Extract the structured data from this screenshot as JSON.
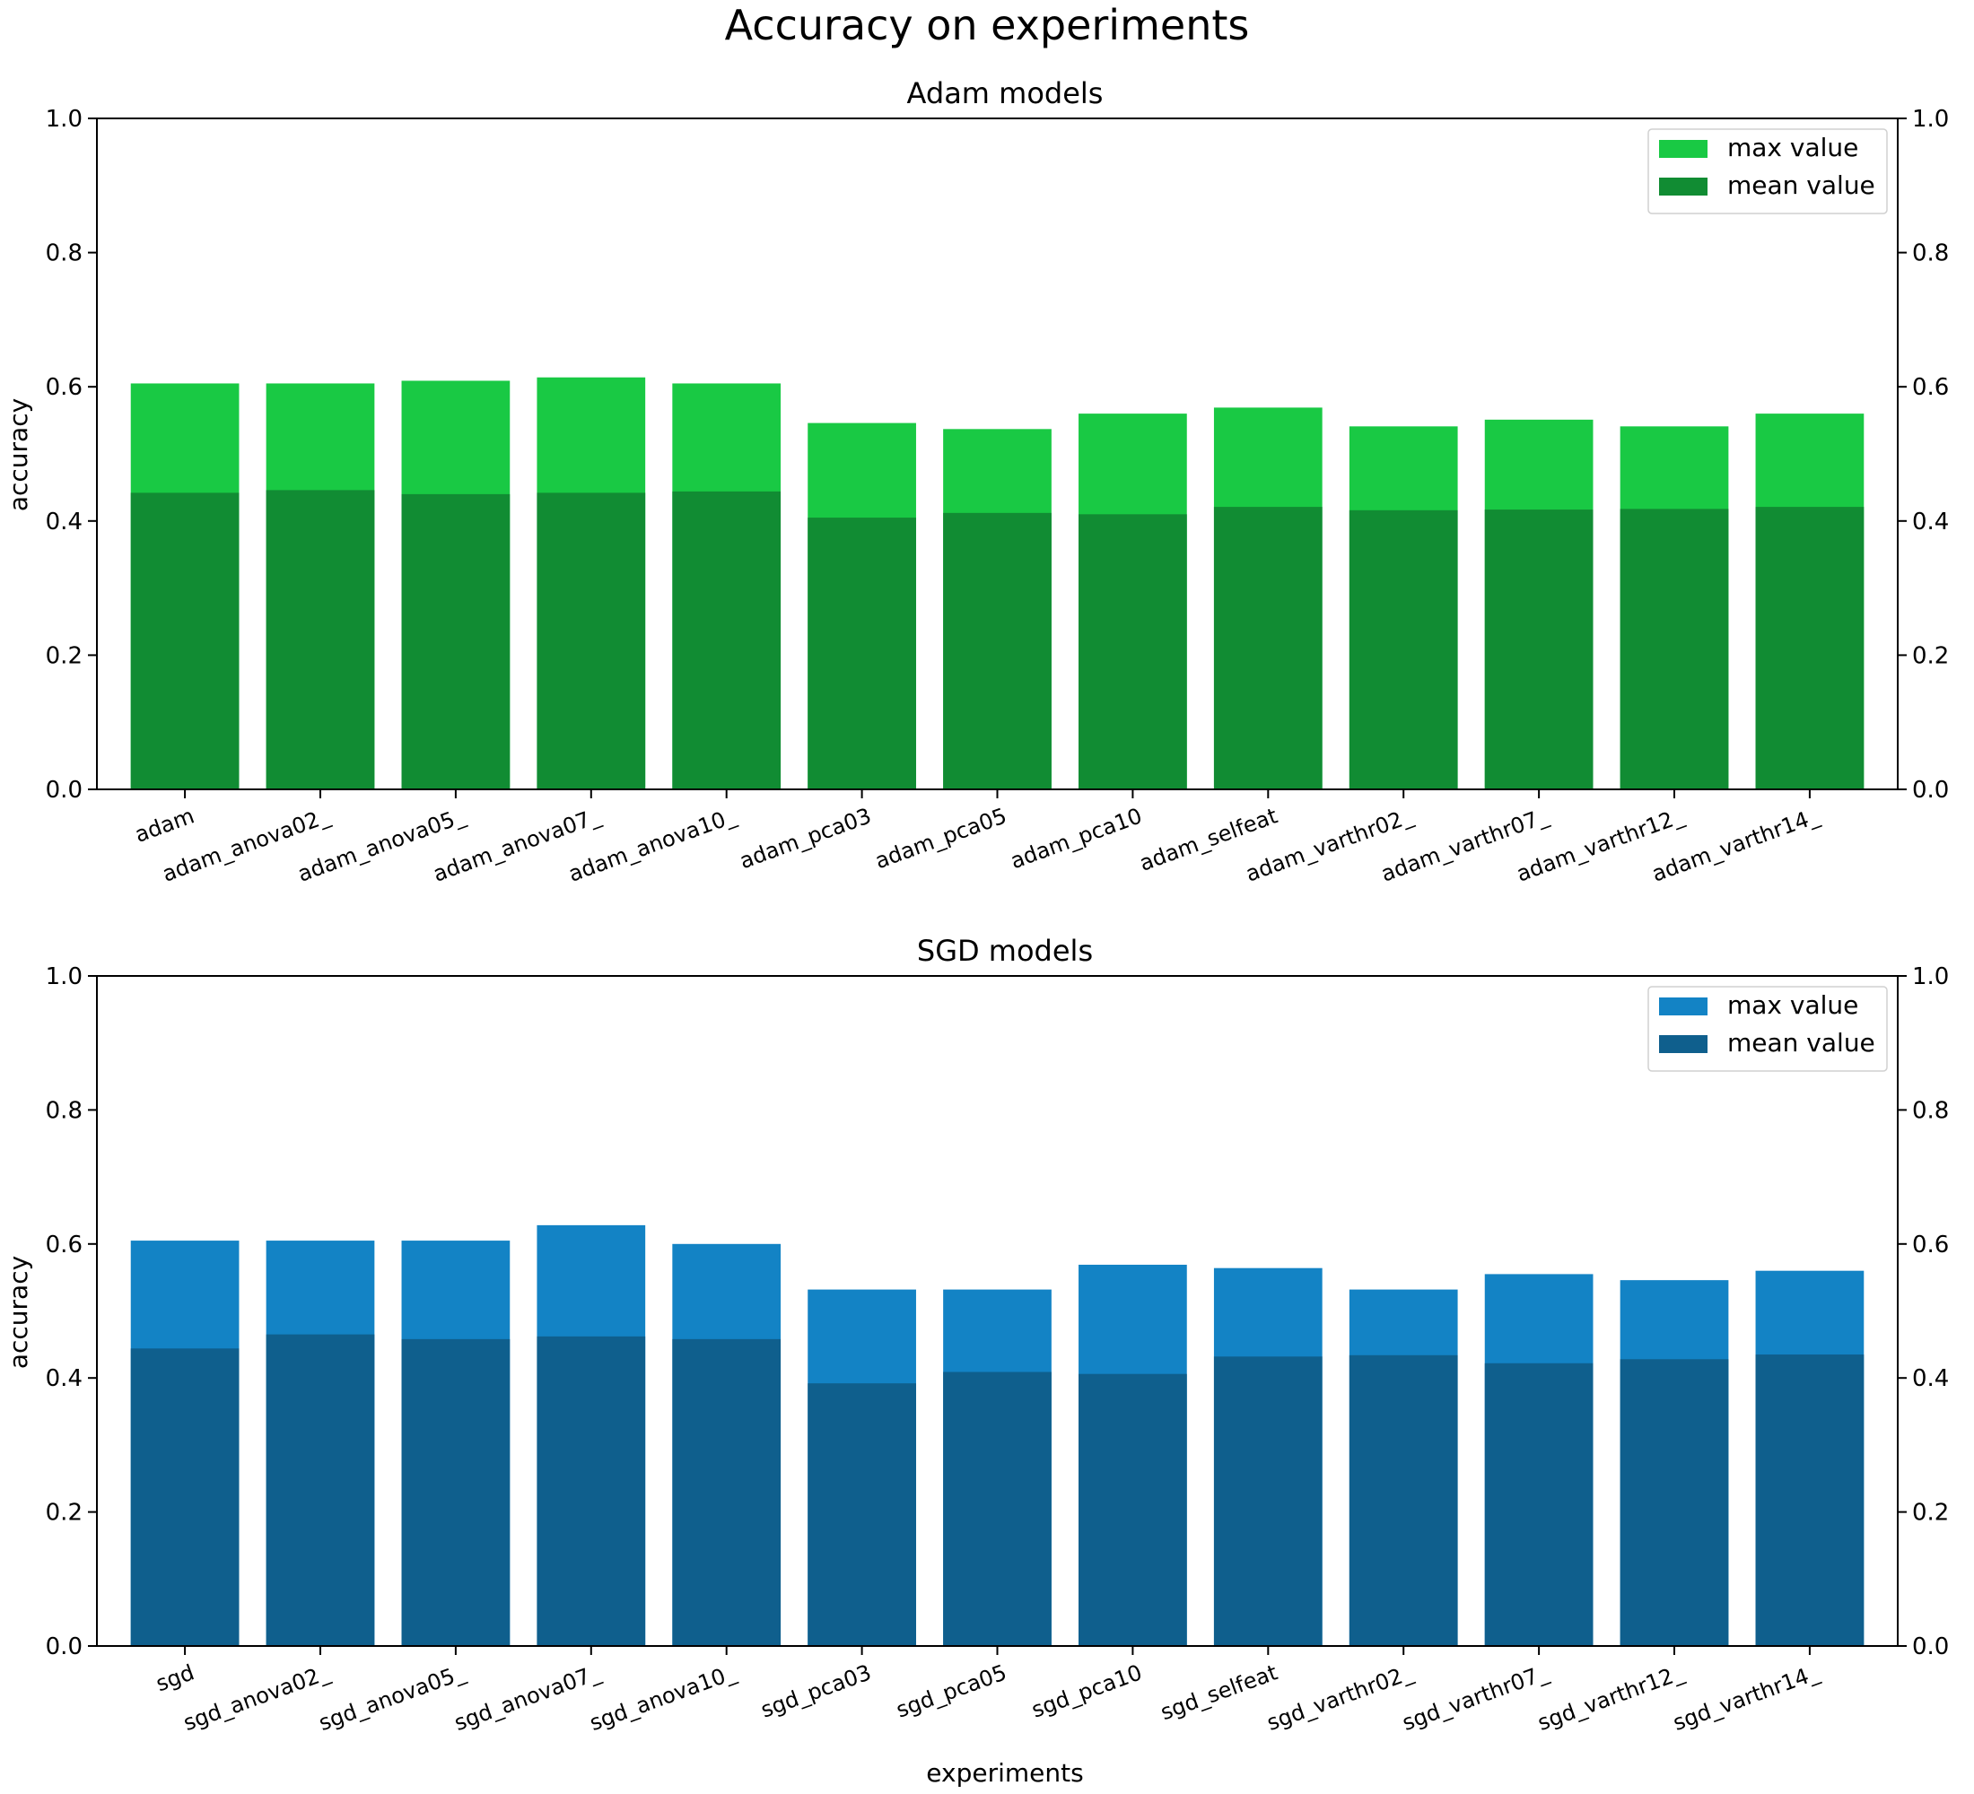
{
  "figure_title": "Accuracy on experiments",
  "chart_data": [
    {
      "type": "bar",
      "title": "Adam models",
      "xlabel": "",
      "ylabel": "accuracy",
      "ylim": [
        0,
        1.0
      ],
      "yticks": [
        "0.0",
        "0.2",
        "0.4",
        "0.6",
        "0.8",
        "1.0"
      ],
      "grid": false,
      "legend_position": "top-right",
      "categories": [
        "adam",
        "adam_anova02_",
        "adam_anova05_",
        "adam_anova07_",
        "adam_anova10_",
        "adam_pca03",
        "adam_pca05",
        "adam_pca10",
        "adam_selfeat",
        "adam_varthr02_",
        "adam_varthr07_",
        "adam_varthr12_",
        "adam_varthr14_"
      ],
      "series": [
        {
          "name": "max value",
          "color": "#19c944",
          "values": [
            0.605,
            0.605,
            0.609,
            0.614,
            0.605,
            0.546,
            0.537,
            0.56,
            0.569,
            0.541,
            0.551,
            0.541,
            0.56
          ]
        },
        {
          "name": "mean value",
          "color": "#118c33",
          "values": [
            0.442,
            0.446,
            0.44,
            0.442,
            0.444,
            0.405,
            0.412,
            0.41,
            0.421,
            0.416,
            0.417,
            0.418,
            0.421
          ]
        }
      ]
    },
    {
      "type": "bar",
      "title": "SGD models",
      "xlabel": "experiments",
      "ylabel": "accuracy",
      "ylim": [
        0,
        1.0
      ],
      "yticks": [
        "0.0",
        "0.2",
        "0.4",
        "0.6",
        "0.8",
        "1.0"
      ],
      "grid": false,
      "legend_position": "top-right",
      "categories": [
        "sgd",
        "sgd_anova02_",
        "sgd_anova05_",
        "sgd_anova07_",
        "sgd_anova10_",
        "sgd_pca03",
        "sgd_pca05",
        "sgd_pca10",
        "sgd_selfeat",
        "sgd_varthr02_",
        "sgd_varthr07_",
        "sgd_varthr12_",
        "sgd_varthr14_"
      ],
      "series": [
        {
          "name": "max value",
          "color": "#1383c5",
          "values": [
            0.605,
            0.605,
            0.605,
            0.628,
            0.6,
            0.532,
            0.532,
            0.569,
            0.564,
            0.532,
            0.555,
            0.546,
            0.56
          ]
        },
        {
          "name": "mean value",
          "color": "#0f5f8d",
          "values": [
            0.444,
            0.465,
            0.458,
            0.462,
            0.458,
            0.392,
            0.409,
            0.406,
            0.432,
            0.434,
            0.422,
            0.428,
            0.435
          ]
        }
      ]
    }
  ]
}
